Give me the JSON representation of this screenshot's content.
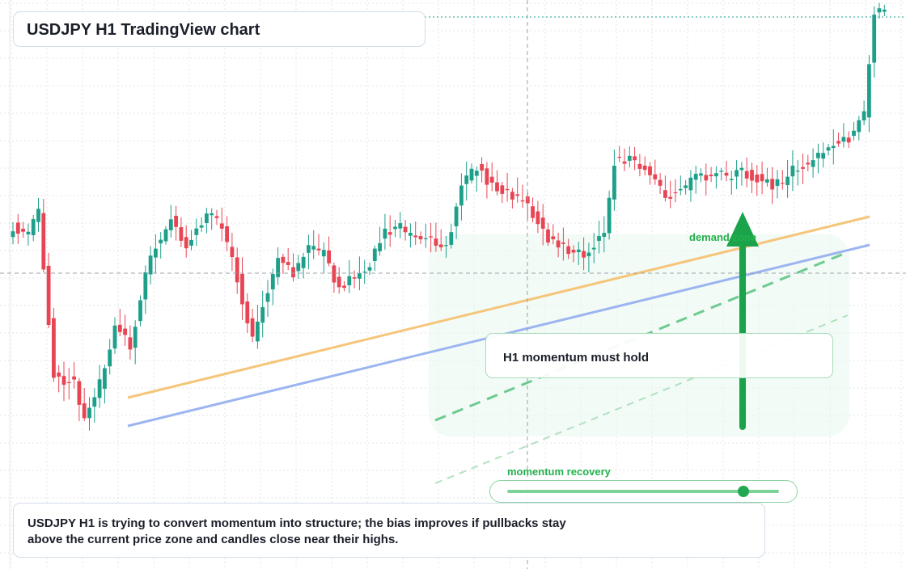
{
  "title": "USDJPY H1 TradingView chart",
  "annotations": {
    "demand_zone": "demand zone",
    "note": "H1 momentum must hold",
    "momentum_recovery": "momentum recovery",
    "description": "USDJPY H1 is trying to convert momentum into structure; the bias improves if pullbacks stay above the current price zone and candles close near their highs."
  },
  "momentum_level": 0.87,
  "colors": {
    "up": "#1e9f8a",
    "down": "#e84554",
    "trend_orange": "#f5c57a",
    "trend_blue": "#9cb5f0",
    "green_accent": "#22b14c"
  },
  "chart_data": {
    "type": "candlestick",
    "symbol": "USDJPY",
    "timeframe": "H1",
    "title": "USDJPY H1 TradingView chart",
    "grid": true,
    "ylim": [
      0,
      100
    ],
    "bars": 172,
    "segments": [
      [
        0,
        65
      ],
      [
        3,
        62
      ],
      [
        5,
        70
      ],
      [
        8,
        12
      ],
      [
        12,
        10
      ],
      [
        14,
        -4
      ],
      [
        17,
        9
      ],
      [
        20,
        30
      ],
      [
        23,
        22
      ],
      [
        27,
        55
      ],
      [
        31,
        67
      ],
      [
        34,
        58
      ],
      [
        38,
        69
      ],
      [
        41,
        65
      ],
      [
        44,
        47
      ],
      [
        47,
        24
      ],
      [
        49,
        38
      ],
      [
        52,
        53
      ],
      [
        55,
        48
      ],
      [
        58,
        57
      ],
      [
        61,
        55
      ],
      [
        64,
        43
      ],
      [
        67,
        47
      ],
      [
        70,
        52
      ],
      [
        73,
        63
      ],
      [
        76,
        64
      ],
      [
        79,
        60
      ],
      [
        82,
        61
      ],
      [
        85,
        57
      ],
      [
        88,
        80
      ],
      [
        91,
        86
      ],
      [
        94,
        79
      ],
      [
        97,
        76
      ],
      [
        100,
        74
      ],
      [
        103,
        67
      ],
      [
        105,
        60
      ],
      [
        108,
        58
      ],
      [
        111,
        55
      ],
      [
        113,
        56
      ],
      [
        116,
        63
      ],
      [
        118,
        88
      ],
      [
        121,
        88
      ],
      [
        125,
        84
      ],
      [
        128,
        75
      ],
      [
        131,
        77
      ],
      [
        134,
        82
      ],
      [
        137,
        83
      ],
      [
        140,
        82
      ],
      [
        143,
        84
      ],
      [
        146,
        82
      ],
      [
        149,
        79
      ],
      [
        151,
        80
      ],
      [
        153,
        85
      ],
      [
        156,
        87
      ],
      [
        159,
        90
      ],
      [
        161,
        94
      ],
      [
        164,
        96
      ],
      [
        167,
        104
      ],
      [
        169,
        140
      ]
    ]
  }
}
